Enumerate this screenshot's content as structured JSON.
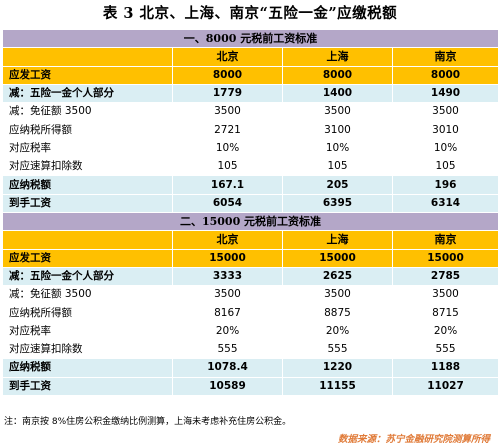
{
  "title": "表 3 北京、上海、南京“五险一金”应缴税额",
  "sections": [
    {
      "heading": "一、8000 元税前工资标准",
      "columns": [
        "北京",
        "上海",
        "南京"
      ],
      "rows": [
        {
          "label": "应发工资",
          "values": [
            "8000",
            "8000",
            "8000"
          ]
        },
        {
          "label": "减：五险一金个人部分",
          "values": [
            "1779",
            "1400",
            "1490"
          ]
        },
        {
          "label": "减：免征额 3500",
          "values": [
            "3500",
            "3500",
            "3500"
          ]
        },
        {
          "label": "应纳税所得额",
          "values": [
            "2721",
            "3100",
            "3010"
          ]
        },
        {
          "label": "对应税率",
          "values": [
            "10%",
            "10%",
            "10%"
          ]
        },
        {
          "label": "对应速算扣除数",
          "values": [
            "105",
            "105",
            "105"
          ]
        },
        {
          "label": "应纳税额",
          "values": [
            "167.1",
            "205",
            "196"
          ]
        },
        {
          "label": "到手工资",
          "values": [
            "6054",
            "6395",
            "6314"
          ]
        }
      ]
    },
    {
      "heading": "二、15000 元税前工资标准",
      "columns": [
        "北京",
        "上海",
        "南京"
      ],
      "rows": [
        {
          "label": "应发工资",
          "values": [
            "15000",
            "15000",
            "15000"
          ]
        },
        {
          "label": "减：五险一金个人部分",
          "values": [
            "3333",
            "2625",
            "2785"
          ]
        },
        {
          "label": "减：免征额 3500",
          "values": [
            "3500",
            "3500",
            "3500"
          ]
        },
        {
          "label": "应纳税所得额",
          "values": [
            "8167",
            "8875",
            "8715"
          ]
        },
        {
          "label": "对应税率",
          "values": [
            "20%",
            "20%",
            "20%"
          ]
        },
        {
          "label": "对应速算扣除数",
          "values": [
            "555",
            "555",
            "555"
          ]
        },
        {
          "label": "应纳税额",
          "values": [
            "1078.4",
            "1220",
            "1188"
          ]
        },
        {
          "label": "到手工资",
          "values": [
            "10589",
            "11155",
            "11027"
          ]
        }
      ]
    }
  ],
  "note": "注：南京按 8%住房公积金缴纳比例测算，上海未考虑补充住房公积金。",
  "source": "数据来源：苏宁金融研究院测算所得"
}
